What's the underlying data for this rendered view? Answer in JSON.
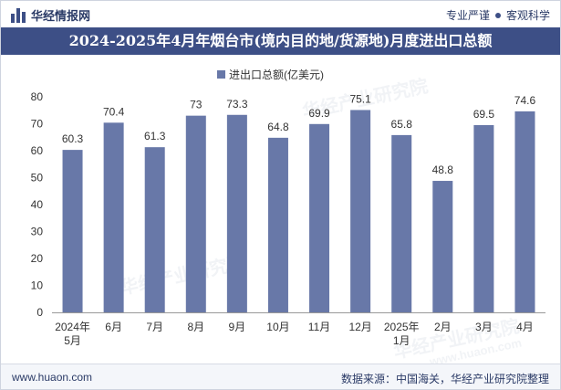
{
  "header": {
    "brand": "华经情报网",
    "slogan_left": "专业严谨",
    "slogan_right": "客观科学"
  },
  "footer": {
    "website": "www.huaon.com",
    "source": "数据来源：中国海关，华经产业研究院整理"
  },
  "watermark": {
    "text_cn": "华经产业研究院",
    "text_url": "www.huaon.com"
  },
  "colors": {
    "bar": "#6878a8",
    "header_band": "#3d4f86",
    "text": "#333333"
  },
  "chart_data": {
    "type": "bar",
    "title": "2024-2025年4月年烟台市(境内目的地/货源地)月度进出口总额",
    "legend": "进出口总额(亿美元)",
    "categories": [
      [
        "2024年",
        "5月"
      ],
      [
        "6月"
      ],
      [
        "7月"
      ],
      [
        "8月"
      ],
      [
        "9月"
      ],
      [
        "10月"
      ],
      [
        "11月"
      ],
      [
        "12月"
      ],
      [
        "2025年",
        "1月"
      ],
      [
        "2月"
      ],
      [
        "3月"
      ],
      [
        "4月"
      ]
    ],
    "values": [
      60.3,
      70.4,
      61.3,
      73,
      73.3,
      64.8,
      69.9,
      75.1,
      65.8,
      48.8,
      69.5,
      74.6
    ],
    "value_labels": [
      "60.3",
      "70.4",
      "61.3",
      "73",
      "73.3",
      "64.8",
      "69.9",
      "75.1",
      "65.8",
      "48.8",
      "69.5",
      "74.6"
    ],
    "ylim": [
      0,
      80
    ],
    "yticks": [
      "0",
      "10",
      "20",
      "30",
      "40",
      "50",
      "60",
      "70",
      "80"
    ],
    "ytick_values": [
      0,
      10,
      20,
      30,
      40,
      50,
      60,
      70,
      80
    ],
    "xlabel": "",
    "ylabel": ""
  }
}
